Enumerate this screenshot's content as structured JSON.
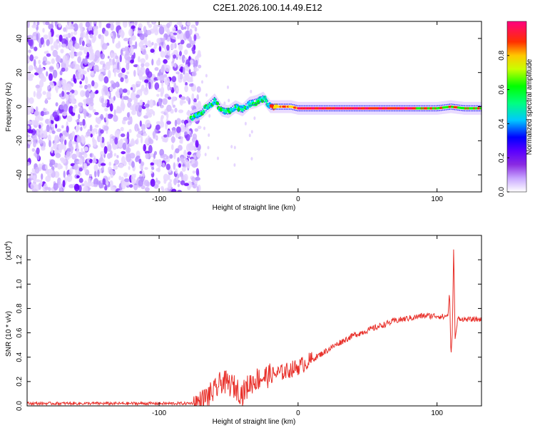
{
  "title": "C2E1.2026.100.14.49.E12",
  "chart_data": [
    {
      "type": "heatmap",
      "name": "spectrogram",
      "xlabel": "Height of straight line (km)",
      "ylabel": "Frequency (Hz)",
      "xlim": [
        -195,
        132
      ],
      "ylim": [
        -50,
        50
      ],
      "xticks": [
        -100,
        0,
        100
      ],
      "xtick_labels": [
        "-100",
        "0",
        "100"
      ],
      "yticks": [
        -40,
        -20,
        0,
        20,
        40
      ],
      "ytick_labels": [
        "-40",
        "-20",
        "0",
        "20",
        "40"
      ],
      "noise_region_km": [
        -195,
        -77
      ],
      "ridge": {
        "x": [
          -77,
          -70,
          -65,
          -60,
          -55,
          -50,
          -45,
          -40,
          -35,
          -30,
          -25,
          -20,
          -15,
          -10,
          -5,
          0,
          20,
          40,
          60,
          80,
          100,
          110,
          120,
          132
        ],
        "y": [
          -6,
          -4,
          0,
          4,
          -2,
          -3,
          0,
          -2,
          2,
          3,
          5,
          0,
          0,
          0,
          0,
          -1,
          -1,
          -1,
          -1,
          -1,
          -1,
          0,
          -1,
          -1
        ]
      },
      "colorbar": {
        "label": "Normalized spectral amplitude",
        "range": [
          0,
          1
        ],
        "ticks": [
          0.0,
          0.2,
          0.4,
          0.6,
          0.8
        ],
        "tick_labels": [
          "0.0",
          "0.2",
          "0.4",
          "0.6",
          "0.8"
        ],
        "colors": [
          "#ffffff",
          "#c8a6ff",
          "#8a2be2",
          "#5a00ff",
          "#0000ff",
          "#00ffff",
          "#00ff00",
          "#ffff00",
          "#ff0000",
          "#ff0080"
        ]
      }
    },
    {
      "type": "line",
      "name": "snr",
      "xlabel": "Height of straight line (km)",
      "ylabel": "SNR (10 * v/v)",
      "scale_label": "(x10",
      "scale_exponent": "4",
      "scale_suffix": ")",
      "xlim": [
        -195,
        132
      ],
      "ylim": [
        0,
        1.4
      ],
      "xticks": [
        -100,
        0,
        100
      ],
      "xtick_labels": [
        "-100",
        "0",
        "100"
      ],
      "yticks": [
        0.0,
        0.2,
        0.4,
        0.6,
        0.8,
        1.0,
        1.2
      ],
      "ytick_labels": [
        "0.0",
        "0.2",
        "0.4",
        "0.6",
        "0.8",
        "1.0",
        "1.2"
      ],
      "color": "#e8302a",
      "series": [
        {
          "name": "SNR",
          "x": [
            -195,
            -150,
            -100,
            -80,
            -70,
            -65,
            -60,
            -55,
            -50,
            -45,
            -40,
            -35,
            -30,
            -20,
            -10,
            0,
            10,
            20,
            30,
            40,
            50,
            60,
            70,
            80,
            90,
            100,
            105,
            108,
            109,
            110,
            111,
            112,
            113,
            115,
            120,
            132
          ],
          "y": [
            0.02,
            0.02,
            0.02,
            0.02,
            0.03,
            0.08,
            0.12,
            0.2,
            0.18,
            0.15,
            0.1,
            0.18,
            0.22,
            0.25,
            0.28,
            0.32,
            0.38,
            0.45,
            0.52,
            0.58,
            0.62,
            0.66,
            0.7,
            0.72,
            0.74,
            0.74,
            0.73,
            0.75,
            0.95,
            0.4,
            0.6,
            1.32,
            0.55,
            0.72,
            0.71,
            0.71
          ]
        }
      ]
    }
  ]
}
